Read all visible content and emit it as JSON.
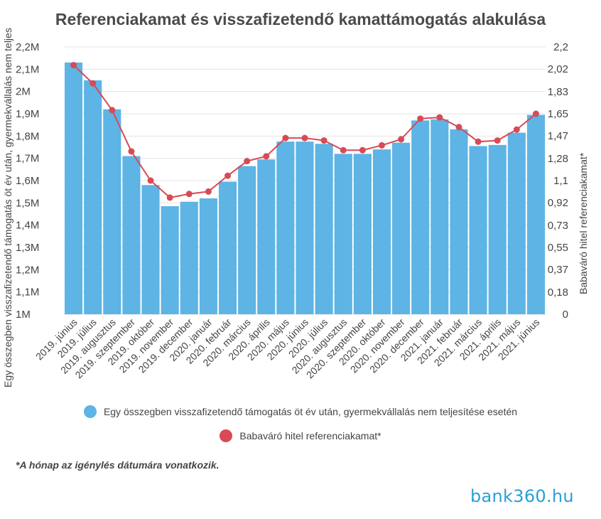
{
  "title": "Referenciakamat és visszafizetendő kamattámogatás alakulása",
  "chart_data": {
    "type": "bar+line",
    "categories": [
      "2019. június",
      "2019. július",
      "2019. augusztus",
      "2019. szeptember",
      "2019. október",
      "2019. november",
      "2019. december",
      "2020. január",
      "2020. február",
      "2020. március",
      "2020. április",
      "2020. május",
      "2020. június",
      "2020. július",
      "2020. augusztus",
      "2020. szeptember",
      "2020. október",
      "2020. november",
      "2020. december",
      "2021. január",
      "2021. február",
      "2021. március",
      "2021. április",
      "2021. május",
      "2021. június"
    ],
    "series": [
      {
        "name": "Egy összegben visszafizetendő támogatás öt év után, gyermekvállalás nem teljesítése esetén",
        "type": "bar",
        "axis": "left",
        "color": "#5db4e5",
        "values": [
          2130000,
          2050000,
          1920000,
          1710000,
          1580000,
          1485000,
          1505000,
          1520000,
          1595000,
          1665000,
          1695000,
          1775000,
          1775000,
          1765000,
          1720000,
          1720000,
          1740000,
          1770000,
          1870000,
          1875000,
          1830000,
          1755000,
          1760000,
          1815000,
          1895000
        ]
      },
      {
        "name": "Babaváró hitel referenciakamat*",
        "type": "line",
        "axis": "right",
        "color": "#d84a55",
        "values": [
          2.05,
          1.9,
          1.68,
          1.34,
          1.1,
          0.96,
          0.99,
          1.01,
          1.14,
          1.26,
          1.3,
          1.45,
          1.45,
          1.43,
          1.35,
          1.35,
          1.39,
          1.44,
          1.61,
          1.62,
          1.54,
          1.42,
          1.43,
          1.52,
          1.65
        ]
      }
    ],
    "y_left": {
      "label": "Egy összegben visszafizetendő támogatás öt év után, gyermekvállalás nem teljes",
      "min": 1000000,
      "max": 2200000,
      "ticks": [
        1000000,
        1100000,
        1200000,
        1300000,
        1400000,
        1500000,
        1600000,
        1700000,
        1800000,
        1900000,
        2000000,
        2100000,
        2200000
      ],
      "tick_labels": [
        "1M",
        "1,1M",
        "1,2M",
        "1,3M",
        "1,4M",
        "1,5M",
        "1,6M",
        "1,7M",
        "1,8M",
        "1,9M",
        "2M",
        "2,1M",
        "2,2M"
      ]
    },
    "y_right": {
      "label": "Babaváró hitel referenciakamat*",
      "min": 0,
      "max": 2.2,
      "ticks": [
        0,
        0.18,
        0.37,
        0.55,
        0.73,
        0.92,
        1.1,
        1.28,
        1.47,
        1.65,
        1.83,
        2.02,
        2.2
      ],
      "tick_labels": [
        "0",
        "0,18",
        "0,37",
        "0,55",
        "0,73",
        "0,92",
        "1,1",
        "1,28",
        "1,47",
        "1,65",
        "1,83",
        "2,02",
        "2,2"
      ]
    },
    "grid": true,
    "legend_placement": "bottom"
  },
  "footnote": "*A hónap az igénylés dátumára vonatkozik.",
  "logo": "bank360.hu"
}
